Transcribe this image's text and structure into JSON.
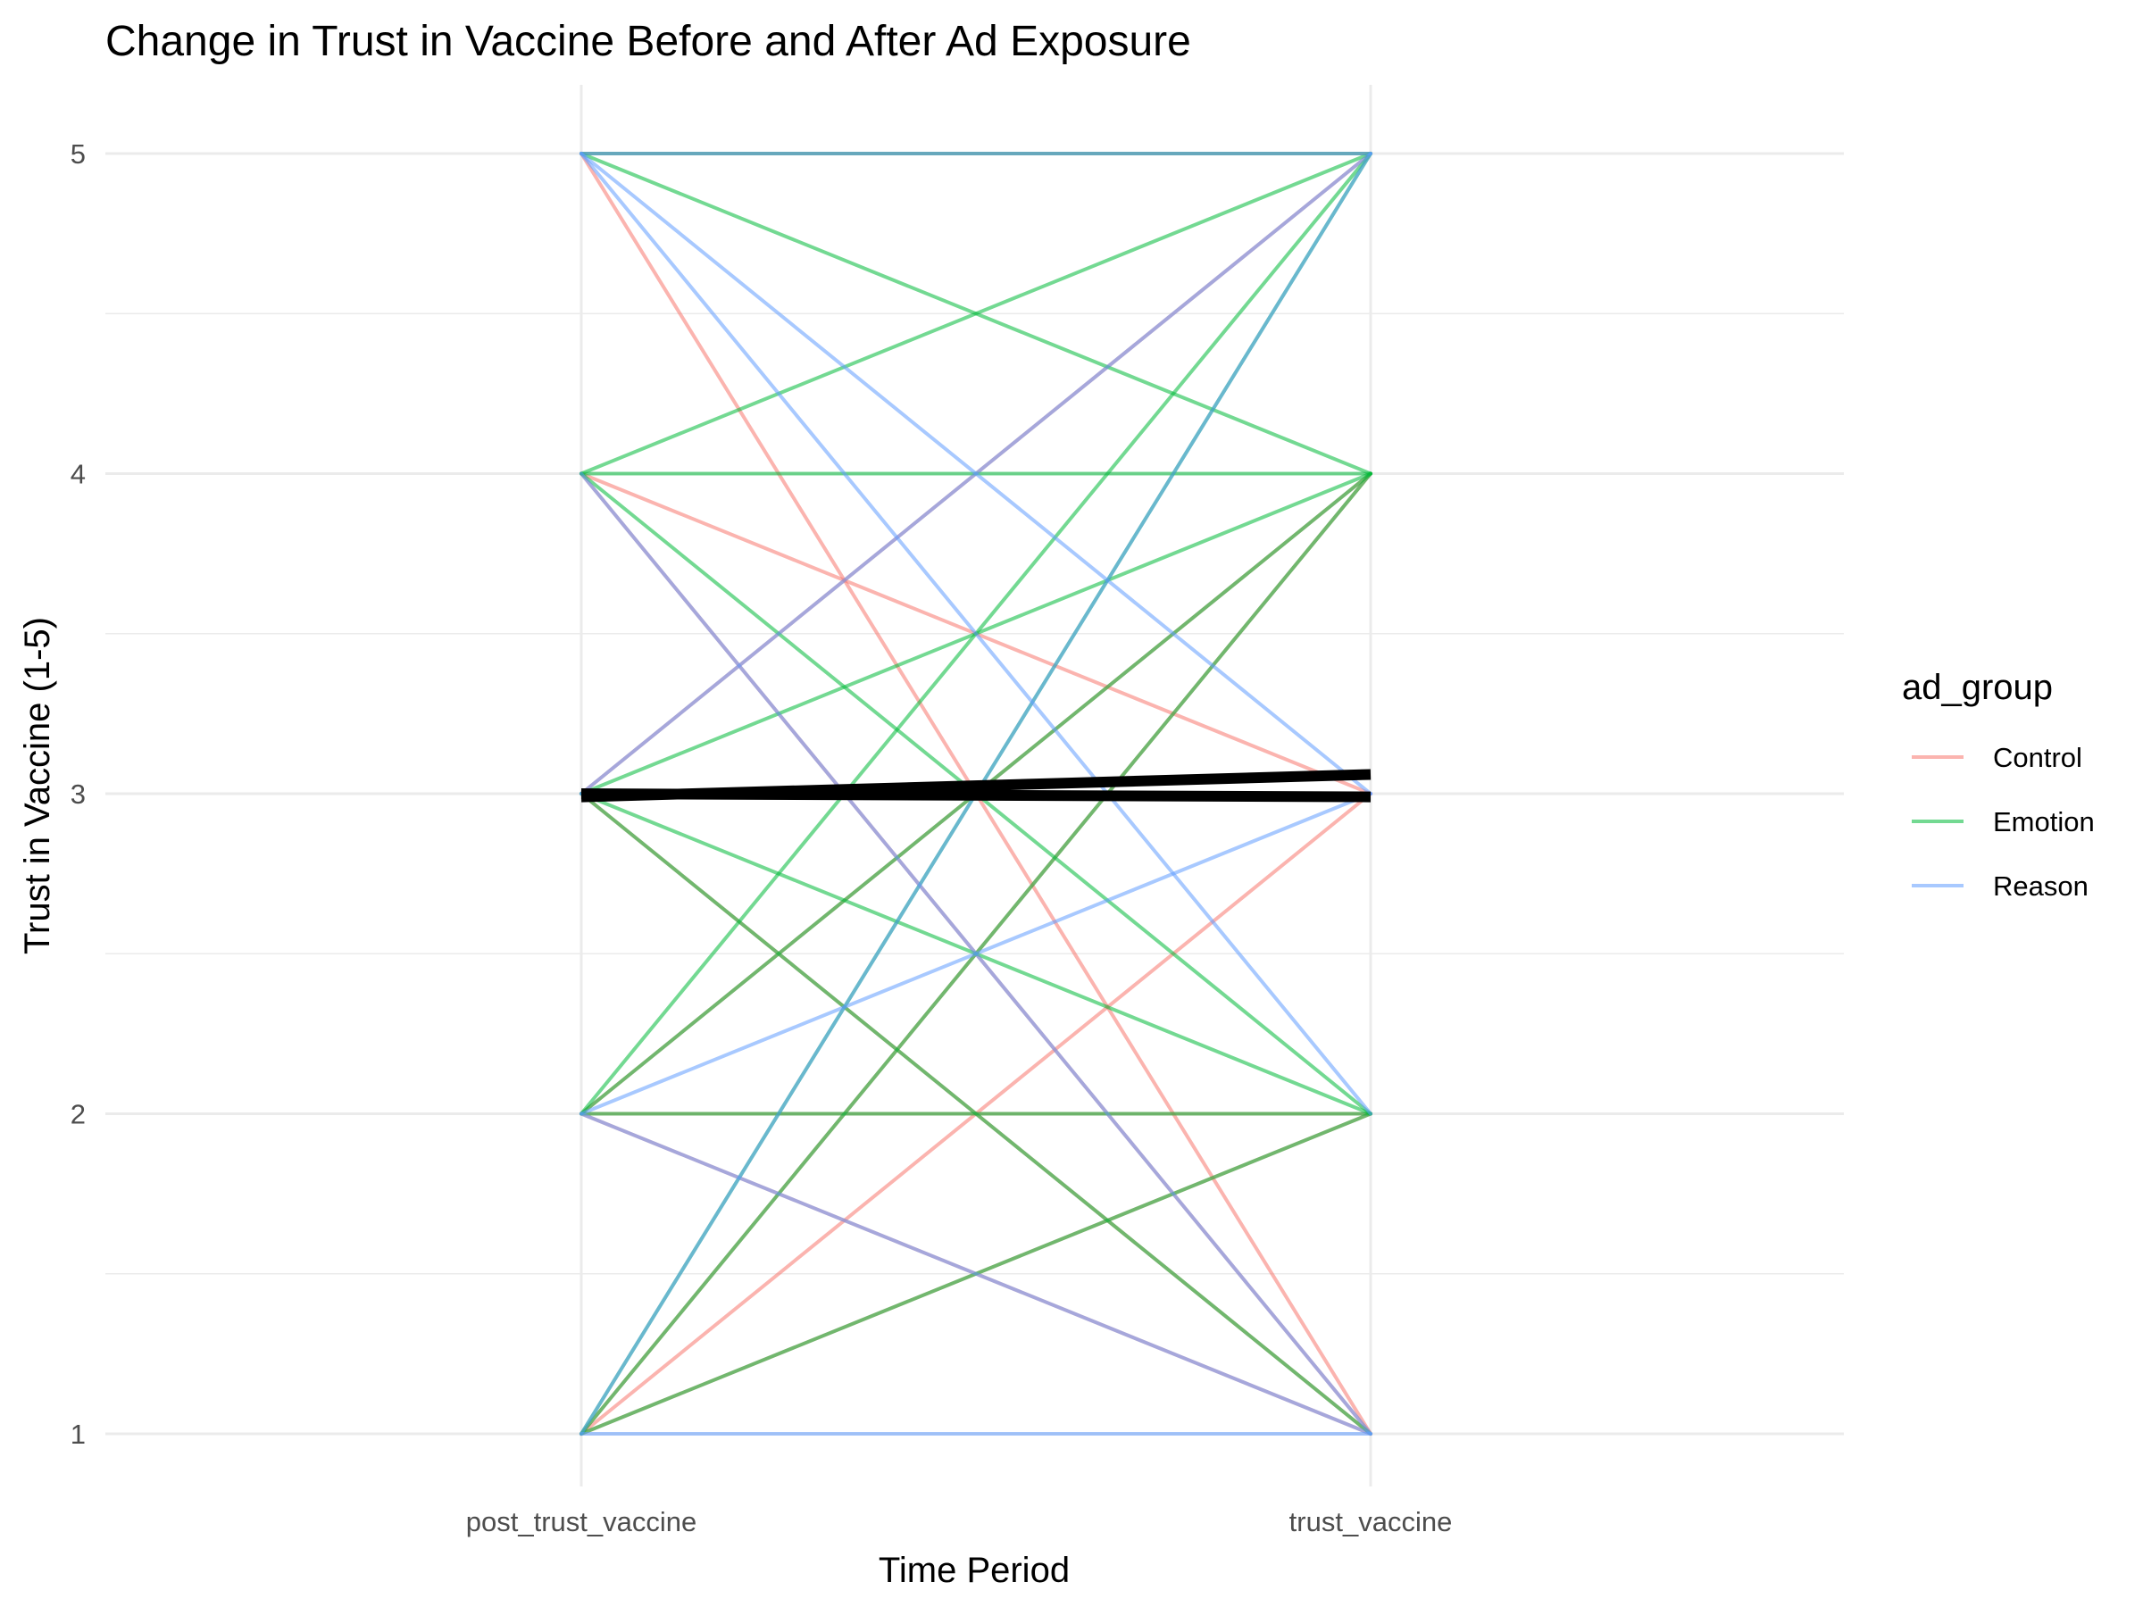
{
  "chart_data": {
    "type": "line",
    "title": "Change in Trust in Vaccine Before and After Ad Exposure",
    "xlabel": "Time Period",
    "ylabel": "Trust in Vaccine (1-5)",
    "categories": [
      "post_trust_vaccine",
      "trust_vaccine"
    ],
    "y_ticks": [
      1,
      2,
      3,
      4,
      5
    ],
    "ylim": [
      0.8,
      5.2
    ],
    "grid": true,
    "legend": {
      "title": "ad_group",
      "position": "right",
      "entries": [
        {
          "name": "Control",
          "color": "#F8766D"
        },
        {
          "name": "Emotion",
          "color": "#00BA38"
        },
        {
          "name": "Reason",
          "color": "#619CFF"
        }
      ]
    },
    "series": [
      {
        "group": "Control",
        "values": [
          5,
          1
        ]
      },
      {
        "group": "Control",
        "values": [
          5,
          5
        ]
      },
      {
        "group": "Control",
        "values": [
          4,
          3
        ]
      },
      {
        "group": "Control",
        "values": [
          4,
          1
        ]
      },
      {
        "group": "Control",
        "values": [
          3,
          1
        ]
      },
      {
        "group": "Control",
        "values": [
          3,
          5
        ]
      },
      {
        "group": "Control",
        "values": [
          2,
          2
        ]
      },
      {
        "group": "Control",
        "values": [
          2,
          1
        ]
      },
      {
        "group": "Control",
        "values": [
          2,
          4
        ]
      },
      {
        "group": "Control",
        "values": [
          1,
          3
        ]
      },
      {
        "group": "Control",
        "values": [
          1,
          4
        ]
      },
      {
        "group": "Control",
        "values": [
          1,
          2
        ]
      },
      {
        "group": "Emotion",
        "values": [
          5,
          4
        ]
      },
      {
        "group": "Emotion",
        "values": [
          5,
          5
        ]
      },
      {
        "group": "Emotion",
        "values": [
          4,
          5
        ]
      },
      {
        "group": "Emotion",
        "values": [
          4,
          4
        ]
      },
      {
        "group": "Emotion",
        "values": [
          4,
          2
        ]
      },
      {
        "group": "Emotion",
        "values": [
          3,
          4
        ]
      },
      {
        "group": "Emotion",
        "values": [
          3,
          2
        ]
      },
      {
        "group": "Emotion",
        "values": [
          3,
          1
        ]
      },
      {
        "group": "Emotion",
        "values": [
          2,
          5
        ]
      },
      {
        "group": "Emotion",
        "values": [
          2,
          4
        ]
      },
      {
        "group": "Emotion",
        "values": [
          2,
          2
        ]
      },
      {
        "group": "Emotion",
        "values": [
          1,
          5
        ]
      },
      {
        "group": "Emotion",
        "values": [
          1,
          2
        ]
      },
      {
        "group": "Emotion",
        "values": [
          1,
          4
        ]
      },
      {
        "group": "Reason",
        "values": [
          5,
          2
        ]
      },
      {
        "group": "Reason",
        "values": [
          5,
          3
        ]
      },
      {
        "group": "Reason",
        "values": [
          5,
          5
        ]
      },
      {
        "group": "Reason",
        "values": [
          4,
          1
        ]
      },
      {
        "group": "Reason",
        "values": [
          3,
          5
        ]
      },
      {
        "group": "Reason",
        "values": [
          3,
          3
        ]
      },
      {
        "group": "Reason",
        "values": [
          2,
          3
        ]
      },
      {
        "group": "Reason",
        "values": [
          1,
          5
        ]
      },
      {
        "group": "Reason",
        "values": [
          1,
          1
        ]
      },
      {
        "group": "Reason",
        "values": [
          2,
          1
        ]
      }
    ],
    "mean_lines": [
      {
        "values": [
          2.99,
          3.06
        ]
      },
      {
        "values": [
          3.0,
          2.99
        ]
      }
    ]
  }
}
